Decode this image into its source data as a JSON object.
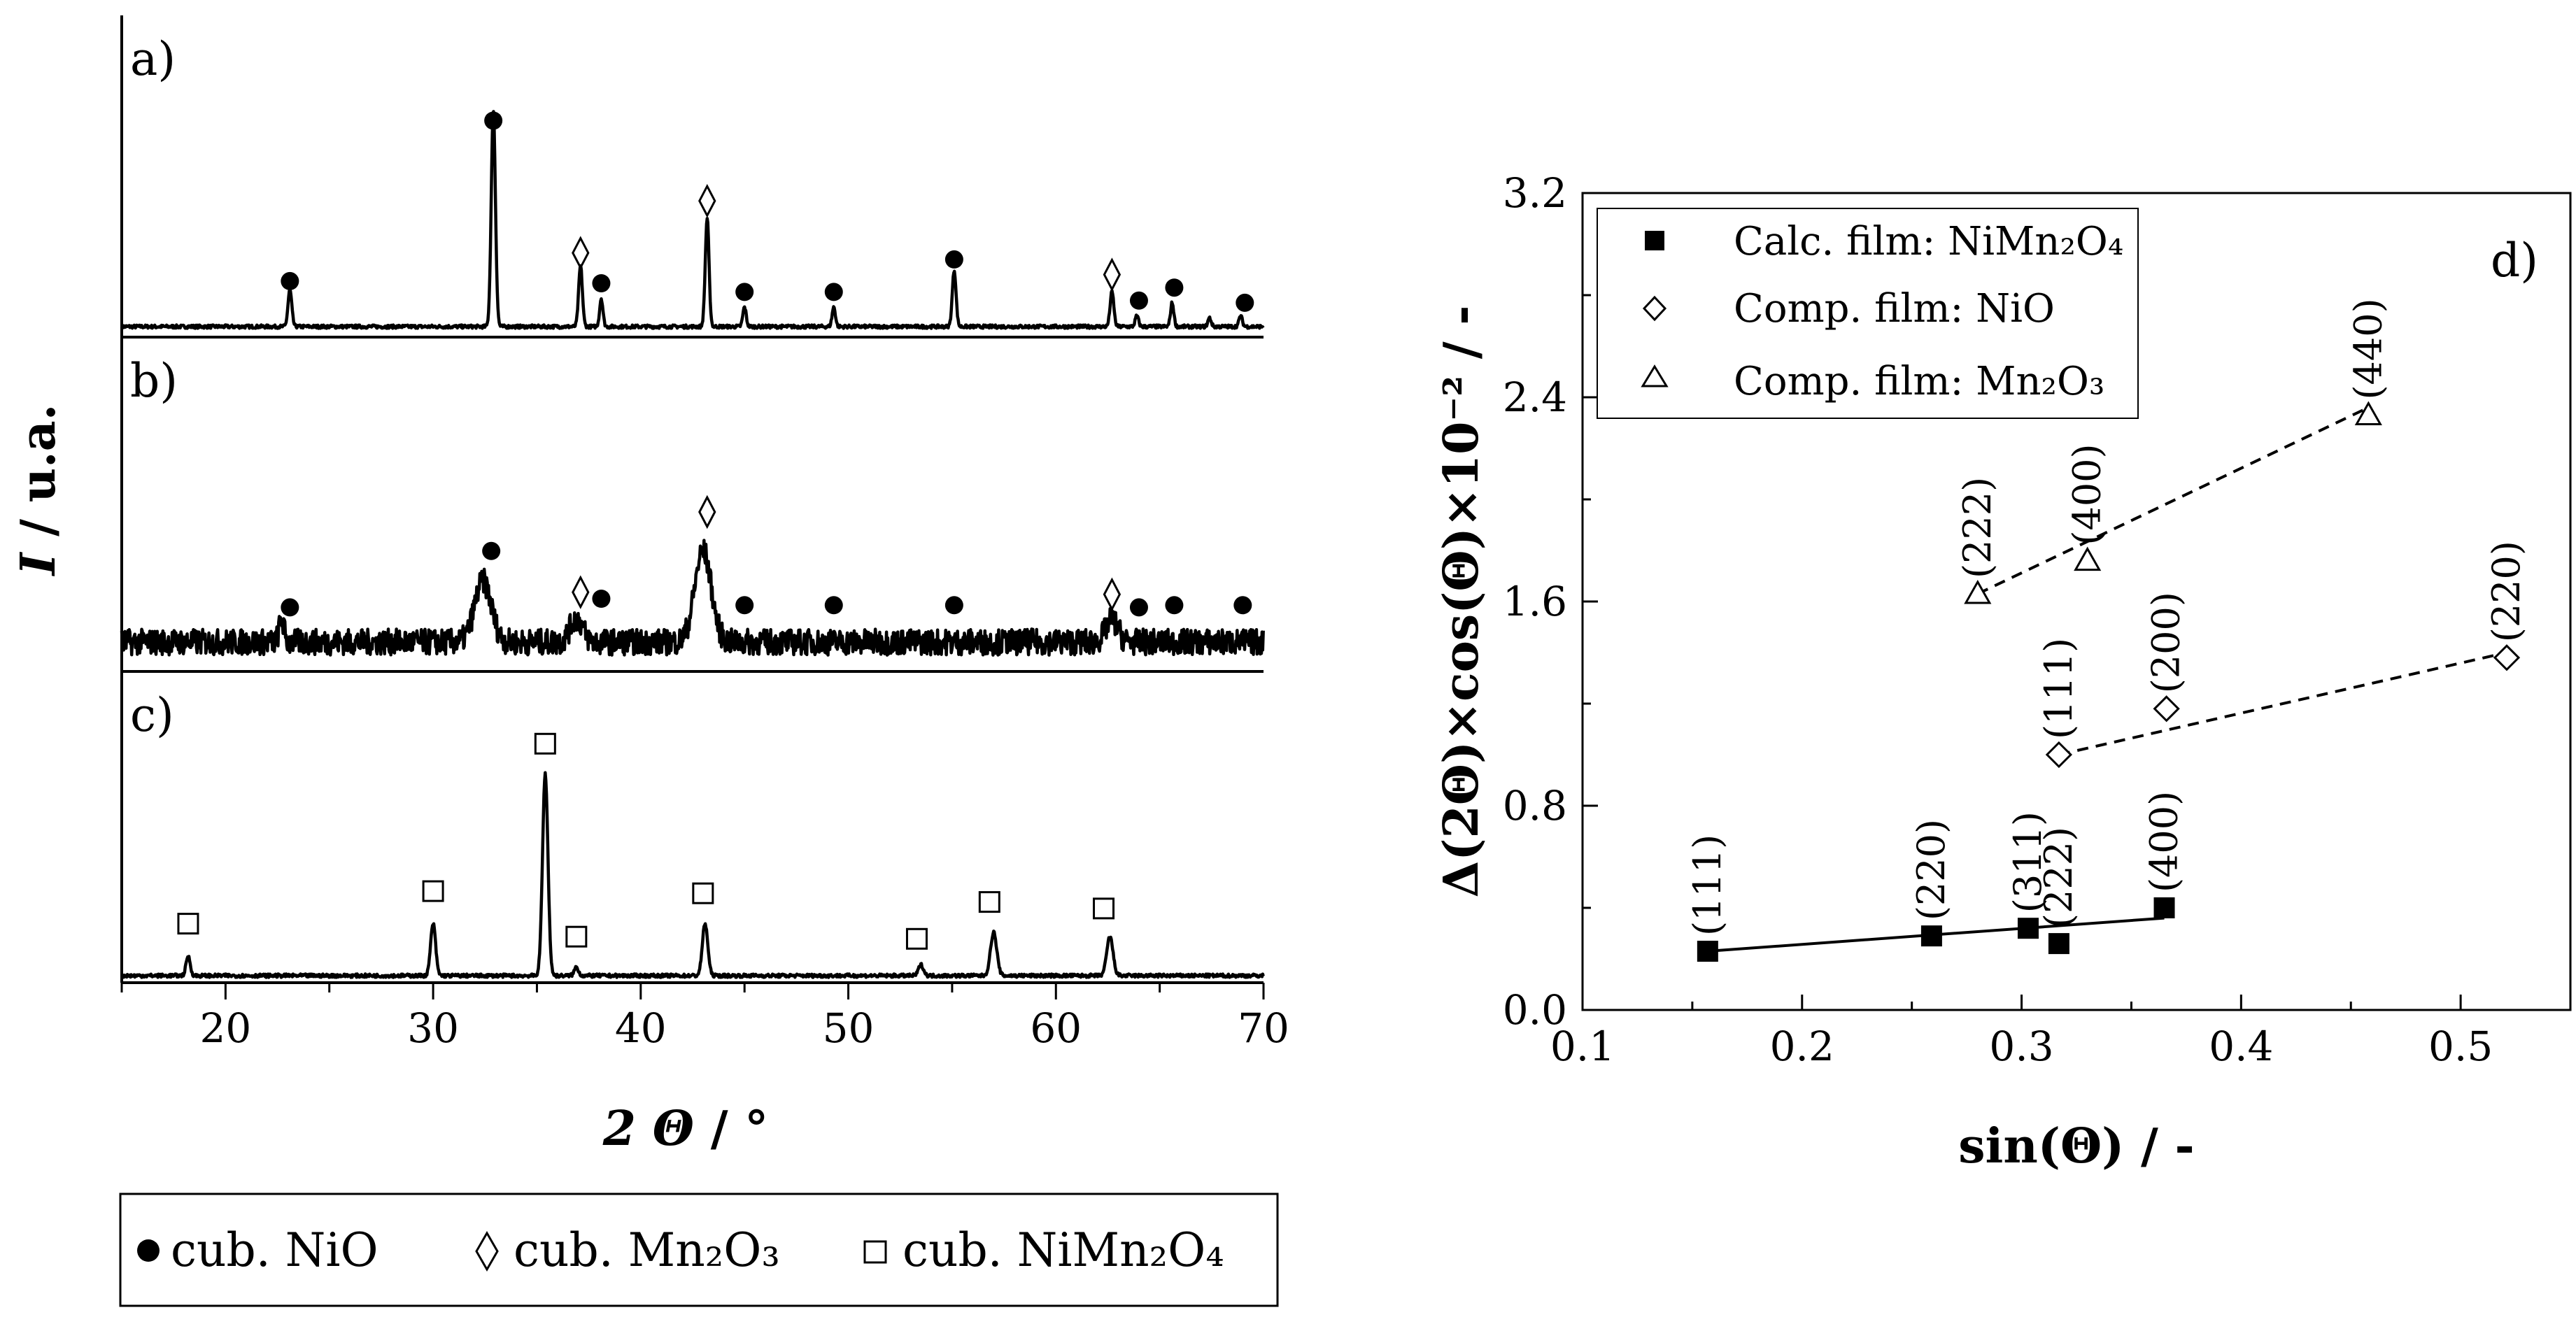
{
  "xrd": {
    "type": "line",
    "xlabel_var": "2 Θ",
    "xlabel_unit": " / °",
    "ylabel_var": "I",
    "ylabel_unit": " / u.a.",
    "xlim": [
      15,
      70
    ],
    "xticks": [
      20,
      30,
      40,
      50,
      60,
      70
    ],
    "panels": [
      {
        "label": "a)",
        "noise": 0.008,
        "peaks": [
          {
            "x": 23.1,
            "h": 0.17,
            "w": 0.09
          },
          {
            "x": 32.9,
            "h": 1.0,
            "w": 0.1
          },
          {
            "x": 37.1,
            "h": 0.28,
            "w": 0.09
          },
          {
            "x": 38.1,
            "h": 0.13,
            "w": 0.08
          },
          {
            "x": 43.2,
            "h": 0.5,
            "w": 0.09
          },
          {
            "x": 45.0,
            "h": 0.09,
            "w": 0.08
          },
          {
            "x": 49.3,
            "h": 0.09,
            "w": 0.08
          },
          {
            "x": 55.1,
            "h": 0.26,
            "w": 0.09
          },
          {
            "x": 62.7,
            "h": 0.16,
            "w": 0.09
          },
          {
            "x": 63.9,
            "h": 0.05,
            "w": 0.08
          },
          {
            "x": 65.6,
            "h": 0.11,
            "w": 0.08
          },
          {
            "x": 67.4,
            "h": 0.04,
            "w": 0.08
          },
          {
            "x": 68.9,
            "h": 0.05,
            "w": 0.08
          }
        ],
        "markers": [
          {
            "x": 23.1,
            "sym": "dot",
            "y": 0.21
          },
          {
            "x": 32.9,
            "sym": "dot",
            "y": 0.95
          },
          {
            "x": 37.1,
            "sym": "diamond",
            "y": 0.34
          },
          {
            "x": 38.1,
            "sym": "dot",
            "y": 0.2
          },
          {
            "x": 43.2,
            "sym": "diamond",
            "y": 0.58
          },
          {
            "x": 45.0,
            "sym": "dot",
            "y": 0.16
          },
          {
            "x": 49.3,
            "sym": "dot",
            "y": 0.16
          },
          {
            "x": 55.1,
            "sym": "dot",
            "y": 0.31
          },
          {
            "x": 62.7,
            "sym": "diamond",
            "y": 0.24
          },
          {
            "x": 64.0,
            "sym": "dot",
            "y": 0.12
          },
          {
            "x": 65.7,
            "sym": "dot",
            "y": 0.18
          },
          {
            "x": 69.1,
            "sym": "dot",
            "y": 0.11
          }
        ]
      },
      {
        "label": "b)",
        "noise": 0.06,
        "peaks": [
          {
            "x": 22.7,
            "h": 0.1,
            "w": 0.12
          },
          {
            "x": 32.4,
            "h": 0.28,
            "w": 0.4
          },
          {
            "x": 36.9,
            "h": 0.11,
            "w": 0.3
          },
          {
            "x": 43.0,
            "h": 0.42,
            "w": 0.4
          },
          {
            "x": 62.7,
            "h": 0.1,
            "w": 0.3
          }
        ],
        "markers": [
          {
            "x": 23.1,
            "sym": "dot",
            "y": 0.16
          },
          {
            "x": 32.8,
            "sym": "dot",
            "y": 0.42
          },
          {
            "x": 37.1,
            "sym": "diamond",
            "y": 0.23
          },
          {
            "x": 38.1,
            "sym": "dot",
            "y": 0.2
          },
          {
            "x": 43.2,
            "sym": "diamond",
            "y": 0.6
          },
          {
            "x": 45.0,
            "sym": "dot",
            "y": 0.17
          },
          {
            "x": 49.3,
            "sym": "dot",
            "y": 0.17
          },
          {
            "x": 55.1,
            "sym": "dot",
            "y": 0.17
          },
          {
            "x": 62.7,
            "sym": "diamond",
            "y": 0.22
          },
          {
            "x": 64.0,
            "sym": "dot",
            "y": 0.16
          },
          {
            "x": 65.7,
            "sym": "dot",
            "y": 0.17
          },
          {
            "x": 69.0,
            "sym": "dot",
            "y": 0.17
          }
        ]
      },
      {
        "label": "c)",
        "noise": 0.008,
        "peaks": [
          {
            "x": 18.2,
            "h": 0.09,
            "w": 0.1
          },
          {
            "x": 30.0,
            "h": 0.24,
            "w": 0.12
          },
          {
            "x": 35.4,
            "h": 0.93,
            "w": 0.13
          },
          {
            "x": 36.9,
            "h": 0.04,
            "w": 0.1
          },
          {
            "x": 43.1,
            "h": 0.24,
            "w": 0.13
          },
          {
            "x": 53.5,
            "h": 0.05,
            "w": 0.12
          },
          {
            "x": 57.0,
            "h": 0.2,
            "w": 0.15
          },
          {
            "x": 62.6,
            "h": 0.18,
            "w": 0.15
          }
        ],
        "markers": [
          {
            "x": 18.2,
            "sym": "square",
            "y": 0.24
          },
          {
            "x": 30.0,
            "sym": "square",
            "y": 0.39
          },
          {
            "x": 35.4,
            "sym": "square",
            "y": 1.07
          },
          {
            "x": 36.9,
            "sym": "square",
            "y": 0.18
          },
          {
            "x": 43.0,
            "sym": "square",
            "y": 0.38
          },
          {
            "x": 53.3,
            "sym": "square",
            "y": 0.17
          },
          {
            "x": 56.8,
            "sym": "square",
            "y": 0.34
          },
          {
            "x": 62.3,
            "sym": "square",
            "y": 0.31
          }
        ]
      }
    ],
    "legend": [
      {
        "sym": "dot",
        "label": "cub. NiO"
      },
      {
        "sym": "diamond",
        "label": "cub. Mn₂O₃"
      },
      {
        "sym": "square",
        "label": "cub. NiMn₂O₄"
      }
    ]
  },
  "chart_data": {
    "type": "scatter",
    "title": "",
    "panel_label": "d)",
    "xlabel": "sin(Θ) / -",
    "ylabel": "Δ(2Θ)×cos(Θ)×10⁻² / -",
    "xlim": [
      0.1,
      0.55
    ],
    "ylim": [
      0.0,
      3.2
    ],
    "xticks": [
      0.1,
      0.2,
      0.3,
      0.4,
      0.5
    ],
    "yticks": [
      0.0,
      0.8,
      1.6,
      2.4,
      3.2
    ],
    "series": [
      {
        "name": "Calc. film: NiMn₂O₄",
        "marker": "filled-square",
        "fit": "solid",
        "fit_line": [
          [
            0.157,
            0.23
          ],
          [
            0.365,
            0.36
          ]
        ],
        "points": [
          {
            "x": 0.157,
            "y": 0.23,
            "hkl": "(111)"
          },
          {
            "x": 0.259,
            "y": 0.29,
            "hkl": "(220)"
          },
          {
            "x": 0.303,
            "y": 0.32,
            "hkl": "(311)"
          },
          {
            "x": 0.317,
            "y": 0.26,
            "hkl": "(222)"
          },
          {
            "x": 0.365,
            "y": 0.4,
            "hkl": "(400)"
          }
        ]
      },
      {
        "name": "Comp. film: NiO",
        "marker": "open-diamond",
        "fit": "dashed",
        "fit_line": [
          [
            0.317,
            1.0
          ],
          [
            0.521,
            1.4
          ]
        ],
        "points": [
          {
            "x": 0.317,
            "y": 1.0,
            "hkl": "(111)"
          },
          {
            "x": 0.366,
            "y": 1.18,
            "hkl": "(200)"
          },
          {
            "x": 0.521,
            "y": 1.38,
            "hkl": "(220)"
          }
        ]
      },
      {
        "name": "Comp. film: Mn₂O₃",
        "marker": "open-triangle",
        "fit": "dashed",
        "fit_line": [
          [
            0.28,
            1.63
          ],
          [
            0.458,
            2.36
          ]
        ],
        "points": [
          {
            "x": 0.28,
            "y": 1.63,
            "hkl": "(222)"
          },
          {
            "x": 0.33,
            "y": 1.76,
            "hkl": "(400)"
          },
          {
            "x": 0.458,
            "y": 2.33,
            "hkl": "(440)"
          }
        ]
      }
    ]
  }
}
